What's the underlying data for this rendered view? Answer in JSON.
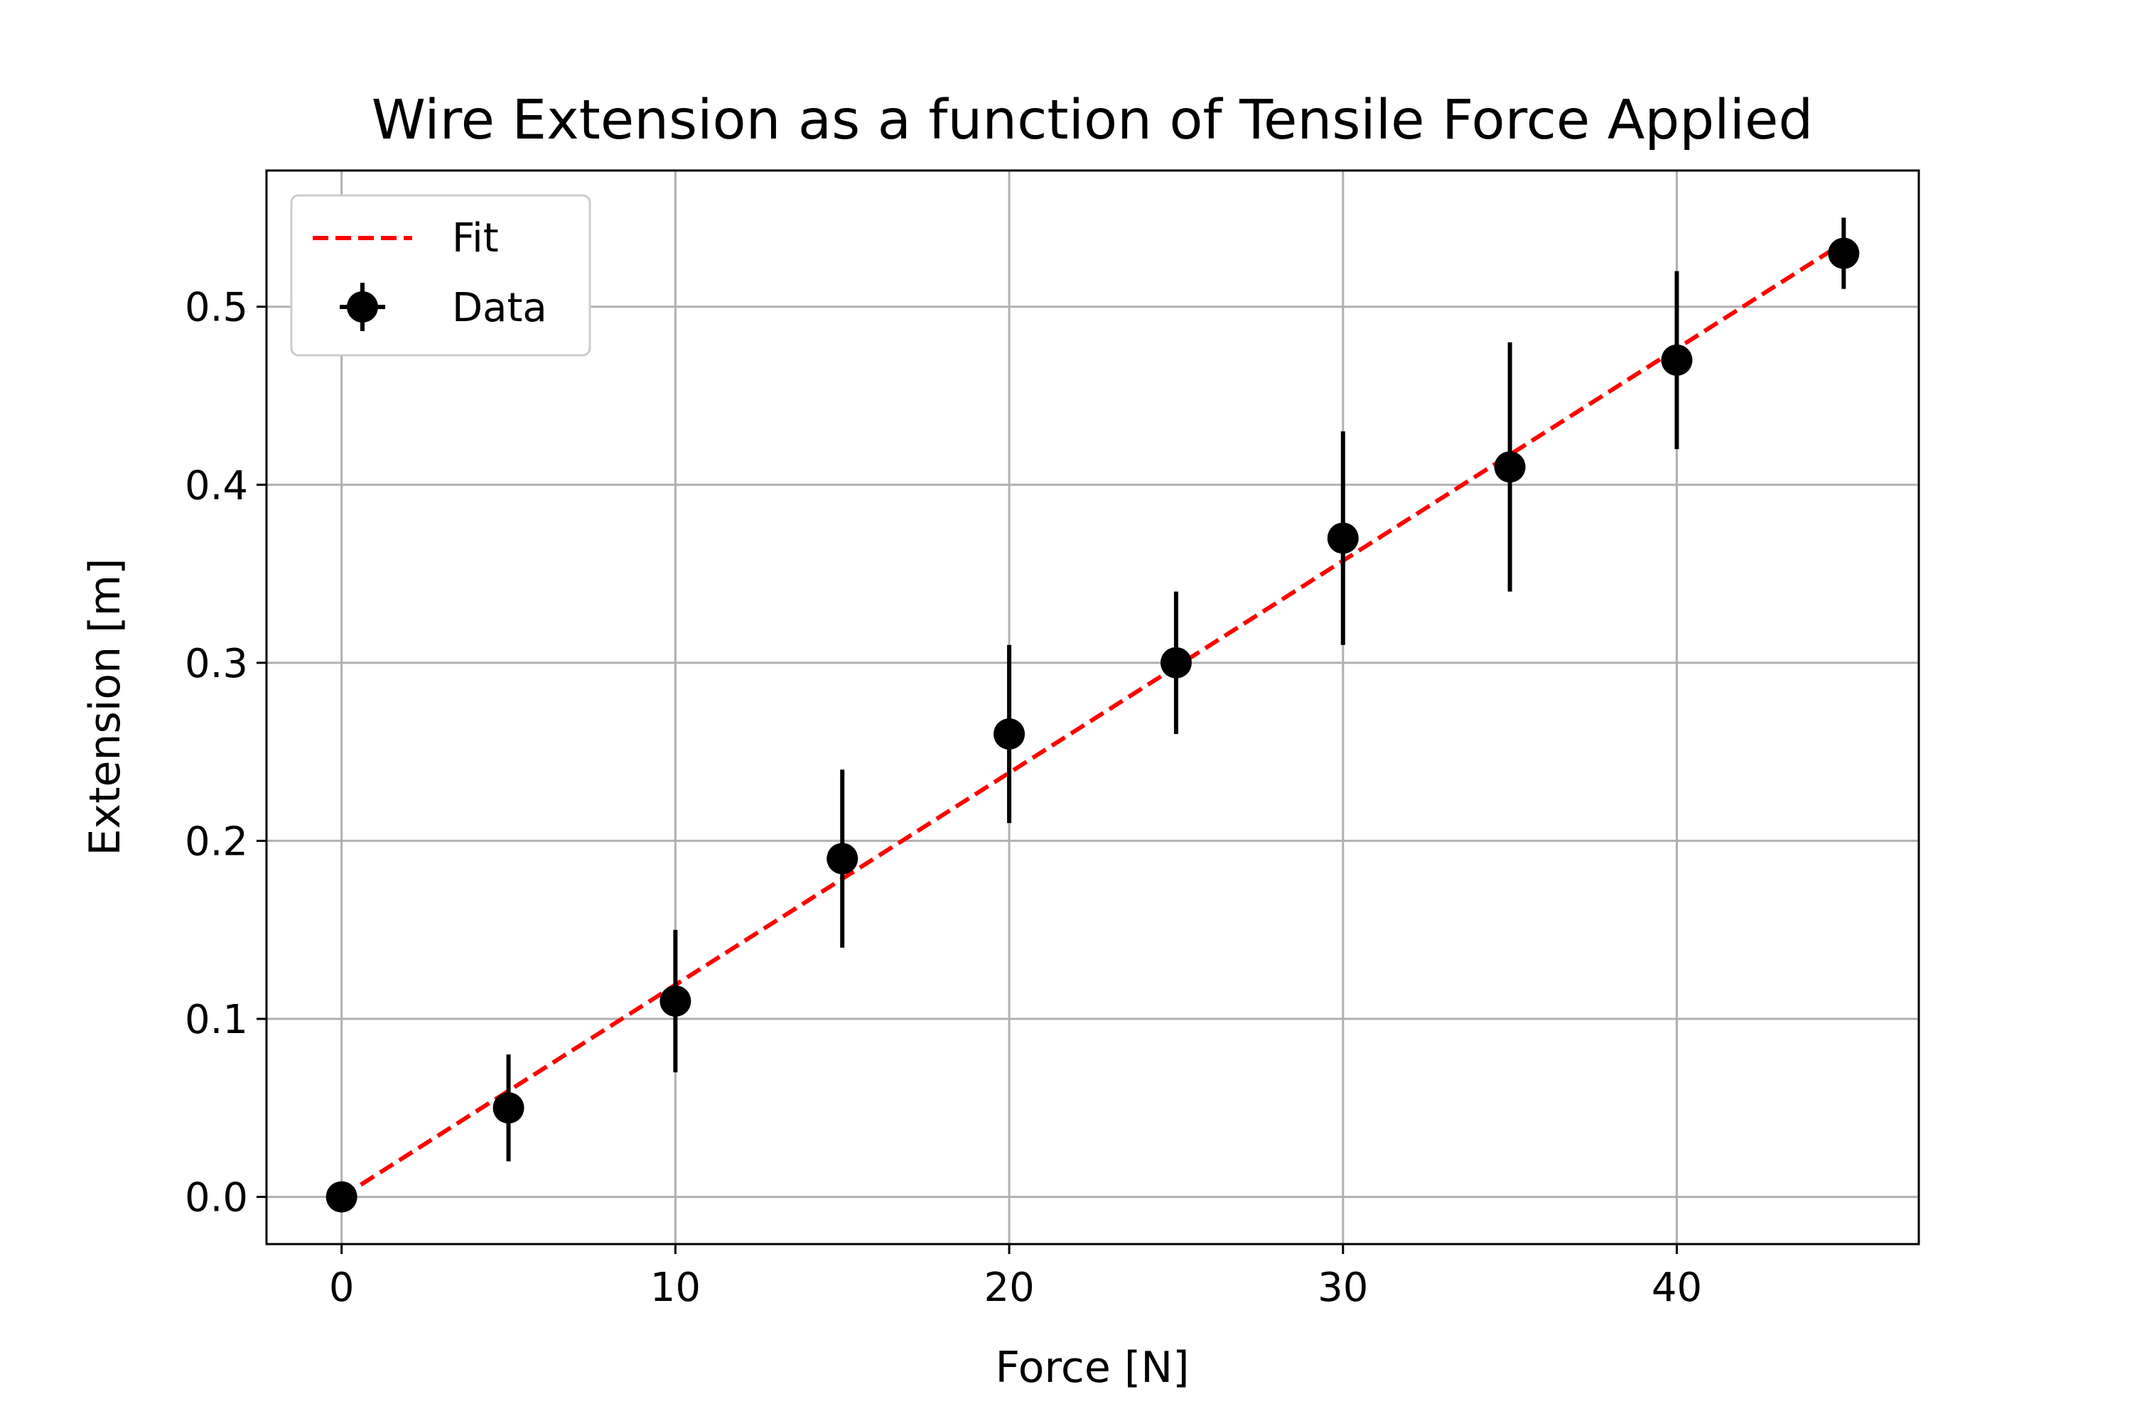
{
  "chart_data": {
    "type": "scatter",
    "title": "Wire Extension as a function of Tensile Force Applied",
    "xlabel": "Force [N]",
    "ylabel": "Extension [m]",
    "xlim": [
      -2.25,
      47.25
    ],
    "ylim": [
      -0.0265,
      0.5765
    ],
    "xticks": [
      0,
      10,
      20,
      30,
      40
    ],
    "yticks": [
      0.0,
      0.1,
      0.2,
      0.3,
      0.4,
      0.5
    ],
    "xtick_labels": [
      "0",
      "10",
      "20",
      "30",
      "40"
    ],
    "ytick_labels": [
      "0.0",
      "0.1",
      "0.2",
      "0.3",
      "0.4",
      "0.5"
    ],
    "grid": true,
    "legend_position": "top-left",
    "series": [
      {
        "name": "Fit",
        "kind": "line",
        "style": "dashed",
        "color": "#ff0000",
        "x": [
          0,
          45
        ],
        "y": [
          0.0,
          0.536
        ]
      },
      {
        "name": "Data",
        "kind": "errorbar",
        "color": "#000000",
        "x": [
          0,
          5,
          10,
          15,
          20,
          25,
          30,
          35,
          40,
          45
        ],
        "y": [
          0.0,
          0.05,
          0.11,
          0.19,
          0.26,
          0.3,
          0.37,
          0.41,
          0.47,
          0.53
        ],
        "yerr": [
          0.0,
          0.03,
          0.04,
          0.05,
          0.05,
          0.04,
          0.06,
          0.07,
          0.05,
          0.02
        ]
      }
    ]
  }
}
